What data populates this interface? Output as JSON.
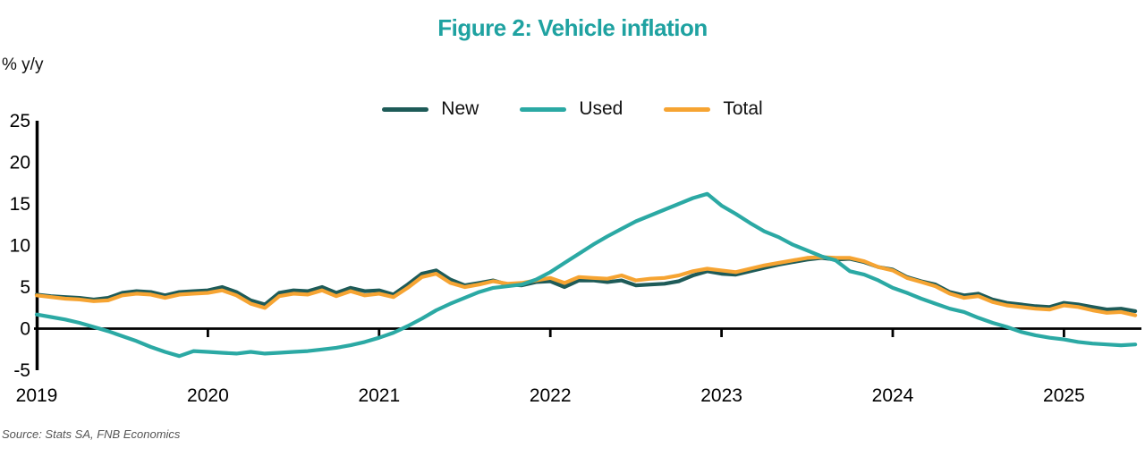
{
  "title": "Figure 2: Vehicle inflation",
  "y_axis_unit": "% y/y",
  "source": "Source: Stats SA, FNB Economics",
  "legend": [
    {
      "label": "New",
      "color": "#1e5b58"
    },
    {
      "label": "Used",
      "color": "#2ba9a4"
    },
    {
      "label": "Total",
      "color": "#f6a432"
    }
  ],
  "colors": {
    "title": "#1fa2a1",
    "axis": "#000000",
    "tick_text": "#000000",
    "new_line": "#1e5b58",
    "used_line": "#2ba9a4",
    "total_line": "#f6a432"
  },
  "chart_data": {
    "type": "line",
    "title": "Figure 2: Vehicle inflation",
    "ylabel": "% y/y",
    "xlabel": "",
    "frequency": "monthly",
    "x_range": [
      "2019-01",
      "2025-06"
    ],
    "x_tick_labels": [
      "2019",
      "2020",
      "2021",
      "2022",
      "2023",
      "2024",
      "2025"
    ],
    "y_ticks": [
      25,
      20,
      15,
      10,
      5,
      0,
      -5
    ],
    "ylim": [
      -5,
      25
    ],
    "grid": false,
    "legend_position": "top-center",
    "series": [
      {
        "name": "New",
        "color": "#1e5b58",
        "values": [
          4.1,
          3.9,
          3.8,
          3.7,
          3.5,
          3.7,
          4.3,
          4.5,
          4.4,
          4.0,
          4.4,
          4.5,
          4.6,
          5.0,
          4.4,
          3.4,
          2.9,
          4.3,
          4.6,
          4.5,
          5.0,
          4.3,
          4.9,
          4.5,
          4.6,
          4.1,
          5.3,
          6.6,
          7.0,
          5.9,
          5.2,
          5.5,
          5.8,
          5.3,
          5.2,
          5.6,
          5.7,
          5.0,
          5.8,
          5.8,
          5.6,
          5.8,
          5.2,
          5.3,
          5.4,
          5.7,
          6.4,
          6.9,
          6.6,
          6.5,
          6.9,
          7.3,
          7.7,
          8.0,
          8.3,
          8.5,
          8.3,
          8.4,
          8.0,
          7.4,
          7.1,
          6.2,
          5.7,
          5.3,
          4.4,
          4.0,
          4.2,
          3.5,
          3.1,
          2.9,
          2.7,
          2.6,
          3.1,
          2.9,
          2.6,
          2.3,
          2.4,
          2.1
        ]
      },
      {
        "name": "Used",
        "color": "#2ba9a4",
        "values": [
          1.7,
          1.4,
          1.1,
          0.7,
          0.2,
          -0.3,
          -0.9,
          -1.5,
          -2.2,
          -2.8,
          -3.3,
          -2.7,
          -2.8,
          -2.9,
          -3.0,
          -2.8,
          -3.0,
          -2.9,
          -2.8,
          -2.7,
          -2.5,
          -2.3,
          -2.0,
          -1.6,
          -1.1,
          -0.5,
          0.3,
          1.2,
          2.2,
          3.0,
          3.7,
          4.4,
          4.9,
          5.1,
          5.3,
          5.9,
          6.8,
          7.9,
          9.0,
          10.1,
          11.1,
          12.0,
          12.9,
          13.6,
          14.3,
          15.0,
          15.7,
          16.2,
          14.8,
          13.8,
          12.7,
          11.7,
          11.0,
          10.1,
          9.4,
          8.7,
          8.2,
          6.9,
          6.5,
          5.8,
          4.9,
          4.3,
          3.6,
          3.0,
          2.4,
          2.0,
          1.3,
          0.7,
          0.2,
          -0.4,
          -0.8,
          -1.1,
          -1.3,
          -1.6,
          -1.8,
          -1.9,
          -2.0,
          -1.9
        ]
      },
      {
        "name": "Total",
        "color": "#f6a432",
        "values": [
          4.0,
          3.8,
          3.6,
          3.5,
          3.3,
          3.4,
          4.0,
          4.2,
          4.1,
          3.7,
          4.1,
          4.2,
          4.3,
          4.6,
          4.0,
          3.0,
          2.5,
          3.9,
          4.2,
          4.1,
          4.6,
          3.9,
          4.5,
          4.0,
          4.2,
          3.8,
          4.9,
          6.2,
          6.6,
          5.5,
          5.0,
          5.3,
          5.7,
          5.4,
          5.5,
          5.8,
          6.1,
          5.5,
          6.2,
          6.1,
          6.0,
          6.4,
          5.8,
          6.0,
          6.1,
          6.4,
          6.9,
          7.2,
          7.0,
          6.8,
          7.2,
          7.6,
          7.9,
          8.2,
          8.5,
          8.6,
          8.5,
          8.5,
          8.1,
          7.4,
          7.0,
          6.1,
          5.6,
          5.1,
          4.2,
          3.7,
          3.9,
          3.2,
          2.8,
          2.6,
          2.4,
          2.3,
          2.8,
          2.6,
          2.2,
          1.9,
          2.0,
          1.6
        ]
      }
    ]
  }
}
